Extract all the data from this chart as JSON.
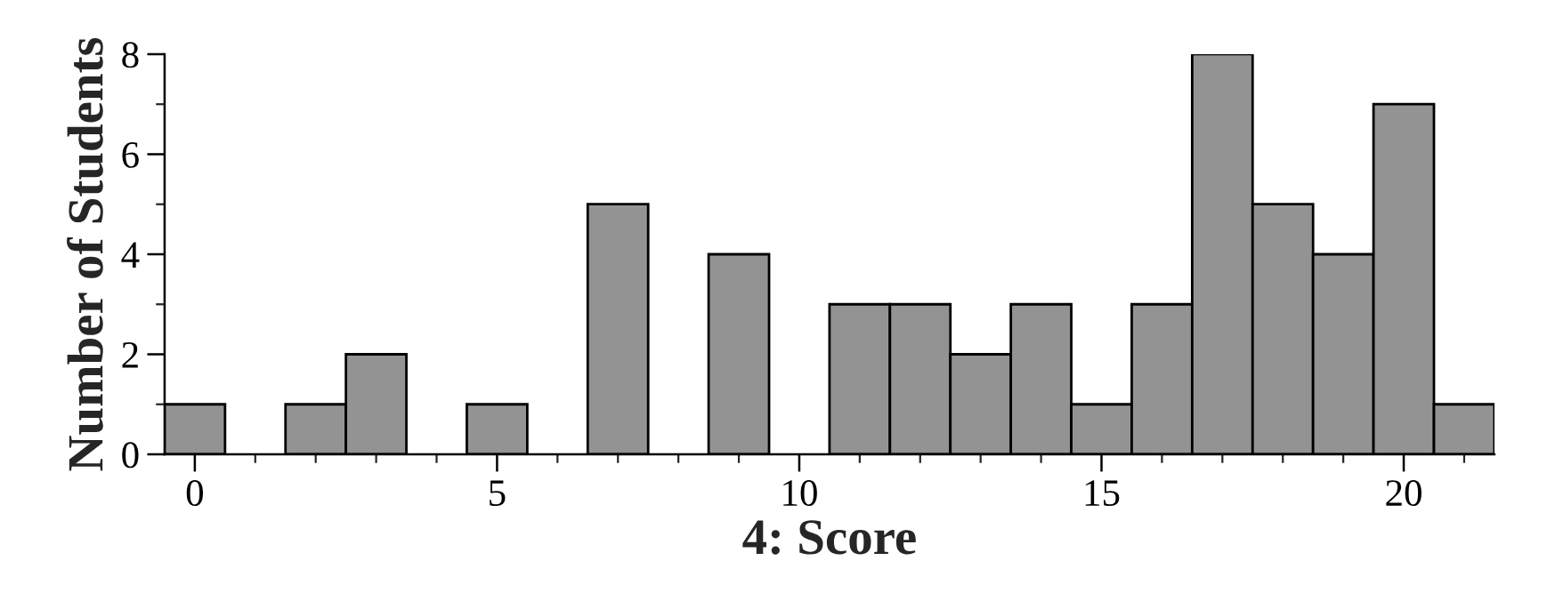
{
  "chart_data": {
    "type": "histogram",
    "bins": [
      -0.5,
      0.5,
      1.5,
      2.5,
      3.5,
      4.5,
      5.5,
      6.5,
      7.5,
      8.5,
      9.5,
      10.5,
      11.5,
      12.5,
      13.5,
      14.5,
      15.5,
      16.5,
      17.5,
      18.5,
      19.5,
      20.5,
      21.5
    ],
    "values": [
      1,
      0,
      1,
      2,
      0,
      1,
      0,
      5,
      0,
      4,
      0,
      3,
      3,
      2,
      3,
      1,
      3,
      8,
      5,
      4,
      7,
      1
    ],
    "color": "#939393",
    "xlabel": "4: Score",
    "ylabel": "Number of Students",
    "xlim": [
      -0.5,
      21.5
    ],
    "ylim": [
      0,
      8
    ],
    "xticks": [
      0,
      {
        "value": 1,
        "label": null
      },
      {
        "value": 2,
        "label": null
      },
      {
        "value": 3,
        "label": null
      },
      {
        "value": 4,
        "label": null
      },
      5,
      {
        "value": 6,
        "label": null
      },
      {
        "value": 7,
        "label": null
      },
      {
        "value": 8,
        "label": null
      },
      {
        "value": 9,
        "label": null
      },
      10,
      {
        "value": 11,
        "label": null
      },
      {
        "value": 12,
        "label": null
      },
      {
        "value": 13,
        "label": null
      },
      {
        "value": 14,
        "label": null
      },
      15,
      {
        "value": 16,
        "label": null
      },
      {
        "value": 17,
        "label": null
      },
      {
        "value": 18,
        "label": null
      },
      {
        "value": 19,
        "label": null
      },
      20,
      {
        "value": 21,
        "label": null
      }
    ],
    "yticks": [
      0,
      {
        "value": 1,
        "label": null
      },
      2,
      {
        "value": 3,
        "label": null
      },
      4,
      {
        "value": 5,
        "label": null
      },
      6,
      {
        "value": 7,
        "label": null
      },
      8
    ],
    "grid": false
  }
}
